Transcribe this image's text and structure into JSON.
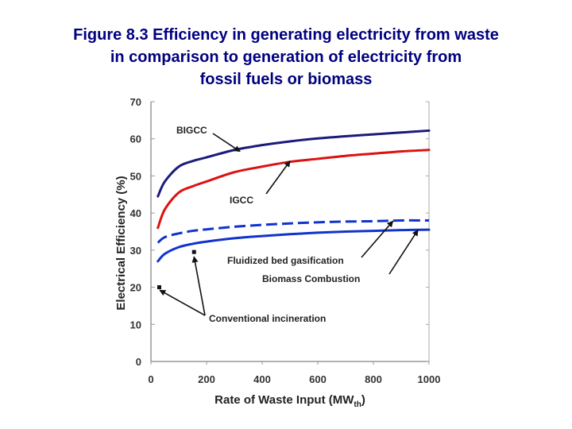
{
  "title_lines": [
    "Figure 8.3 Efficiency in generating electricity from waste",
    "in comparison to generation of electricity from",
    "fossil fuels or biomass"
  ],
  "chart_data": {
    "type": "line",
    "title": "Figure 8.3 Efficiency in generating electricity from waste in comparison to generation of electricity from fossil fuels or biomass",
    "xlabel": "Rate of Waste Input (MW",
    "xlabel_sub": "th",
    "xlabel_close": ")",
    "ylabel": "Electrical Efficiency (%)",
    "xlim": [
      0,
      1000
    ],
    "ylim": [
      0,
      70
    ],
    "xticks": [
      0,
      200,
      400,
      600,
      800,
      1000
    ],
    "yticks": [
      0,
      10,
      20,
      30,
      40,
      50,
      60,
      70
    ],
    "series": [
      {
        "name": "BIGCC",
        "color": "#1a1a7a",
        "style": "solid",
        "x": [
          25,
          50,
          100,
          150,
          200,
          300,
          400,
          500,
          600,
          700,
          800,
          900,
          1000
        ],
        "y": [
          44.5,
          48.5,
          52.5,
          54,
          55,
          57,
          58.3,
          59.3,
          60.1,
          60.7,
          61.2,
          61.7,
          62.2
        ]
      },
      {
        "name": "IGCC",
        "color": "#dd1111",
        "style": "solid",
        "x": [
          25,
          50,
          100,
          150,
          200,
          300,
          400,
          500,
          600,
          700,
          800,
          900,
          1000
        ],
        "y": [
          36,
          41,
          45.5,
          47.2,
          48.5,
          51,
          52.5,
          53.8,
          54.6,
          55.4,
          56,
          56.6,
          57
        ]
      },
      {
        "name": "Fluidized bed gasification",
        "color": "#1133cc",
        "style": "dashed",
        "x": [
          25,
          50,
          100,
          150,
          200,
          300,
          400,
          500,
          600,
          700,
          800,
          900,
          1000
        ],
        "y": [
          32,
          33.5,
          34.5,
          35.2,
          35.6,
          36.3,
          36.8,
          37.2,
          37.5,
          37.7,
          37.8,
          38,
          38
        ]
      },
      {
        "name": "Biomass Combustion",
        "color": "#1133cc",
        "style": "solid",
        "x": [
          25,
          50,
          100,
          150,
          200,
          300,
          400,
          500,
          600,
          700,
          800,
          900,
          1000
        ],
        "y": [
          27,
          29,
          30.8,
          31.7,
          32.3,
          33.2,
          33.8,
          34.3,
          34.7,
          35,
          35.2,
          35.4,
          35.5
        ]
      }
    ],
    "points": [
      {
        "name": "Conventional incineration",
        "x": 30,
        "y": 20
      },
      {
        "name": "Conventional incineration",
        "x": 155,
        "y": 29.5
      }
    ],
    "annotations": [
      "BIGCC",
      "IGCC",
      "Fluidized bed gasification",
      "Biomass Combustion",
      "Conventional incineration"
    ]
  }
}
